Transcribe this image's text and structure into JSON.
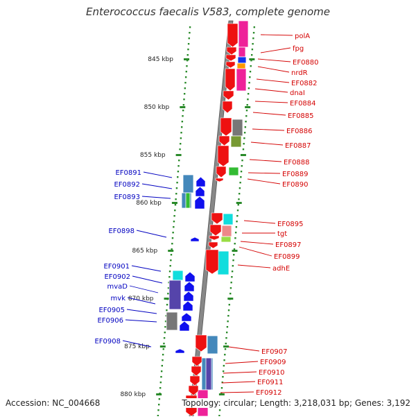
{
  "title": "Enterococcus faecalis V583, complete genome",
  "footer": {
    "accession": "Accession: NC_004668",
    "topology": "Topology: circular; Length: 3,218,031 bp; Genes: 3,192"
  },
  "ruler": {
    "unit": "kbp",
    "ticks": [
      {
        "label": "845 kbp",
        "kbp": 845
      },
      {
        "label": "850 kbp",
        "kbp": 850
      },
      {
        "label": "855 kbp",
        "kbp": 855
      },
      {
        "label": "860 kbp",
        "kbp": 860
      },
      {
        "label": "865 kbp",
        "kbp": 865
      },
      {
        "label": "870 kbp",
        "kbp": 870
      },
      {
        "label": "875 kbp",
        "kbp": 875
      },
      {
        "label": "880 kbp",
        "kbp": 880
      }
    ]
  },
  "colors": {
    "forward_label": "#d40000",
    "reverse_label": "#0000c0",
    "forward_gene": "#ee1111",
    "reverse_gene": "#1010ee",
    "backbone": "#888888",
    "tick": "#2a8a2a",
    "cog_magenta": "#ee2299",
    "cog_blue": "#1133ee",
    "cog_orange": "#ff9900",
    "cog_gray": "#777777",
    "cog_olive": "#779933",
    "cog_green": "#33bb33",
    "cog_steel": "#4488bb",
    "cog_cyan": "#11dddd",
    "cog_pink": "#ee8888",
    "cog_lime": "#99dd44",
    "cog_purple": "#5544aa"
  },
  "forward_genes": [
    "polA",
    "fpg",
    "EF0880",
    "nrdR",
    "EF0882",
    "dnaI",
    "EF0884",
    "EF0885",
    "EF0886",
    "EF0887",
    "EF0888",
    "EF0889",
    "EF0890",
    "EF0895",
    "tgt",
    "EF0897",
    "EF0899",
    "adhE",
    "EF0907",
    "EF0909",
    "EF0910",
    "EF0911",
    "EF0912"
  ],
  "reverse_genes": [
    "EF0891",
    "EF0892",
    "EF0893",
    "EF0898",
    "EF0901",
    "EF0902",
    "mvaD",
    "mvk",
    "EF0905",
    "EF0906",
    "EF0908"
  ]
}
